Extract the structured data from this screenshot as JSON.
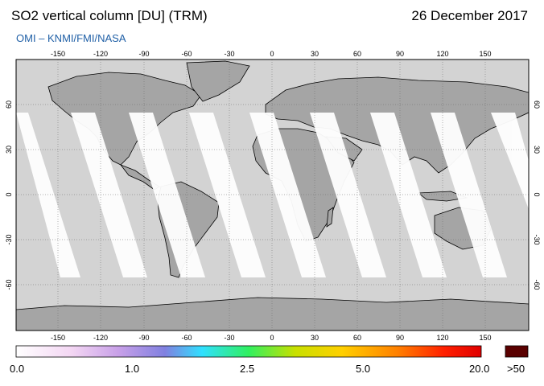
{
  "header": {
    "title": "SO2 vertical column [DU] (TRM)",
    "date": "26 December 2017",
    "credit": "OMI  –  KNMI/FMI/NASA"
  },
  "map": {
    "lon_ticks": [
      "-150",
      "-120",
      "-90",
      "-60",
      "-30",
      "0",
      "30",
      "60",
      "90",
      "120",
      "150"
    ],
    "lat_ticks": [
      "60",
      "30",
      "0",
      "-30",
      "-60"
    ],
    "colors": {
      "background_grey": "#d3d3d3",
      "land_grey": "#a5a5a5",
      "no_data_white": "#ffffff",
      "coastline": "#000000"
    }
  },
  "colorbar": {
    "labels": [
      "0.0",
      "1.0",
      "2.5",
      "5.0",
      "20.0",
      ">50"
    ],
    "colors": [
      "#ffffff",
      "#f3d6f3",
      "#c8a0e8",
      "#8080e0",
      "#30e0ff",
      "#30f060",
      "#c8e000",
      "#ffd000",
      "#ff8000",
      "#ff2000",
      "#e00000"
    ],
    "overflow_color": "#5a0000"
  }
}
